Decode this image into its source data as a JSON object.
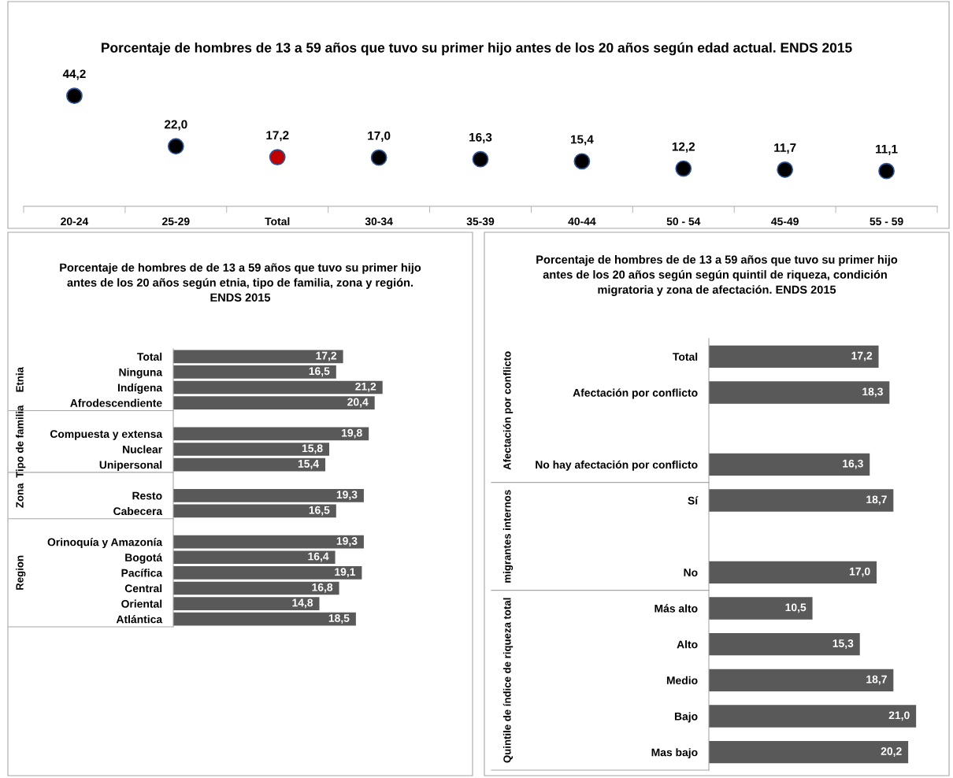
{
  "chart_data": [
    {
      "type": "scatter",
      "title": "Porcentaje de hombres de 13 a 59 años que tuvo su primer hijo antes de los 20 años según edad actual. ENDS 2015",
      "categories": [
        "20-24",
        "25-29",
        "Total",
        "30-34",
        "35-39",
        "40-44",
        "50 - 54",
        "45-49",
        "55 - 59"
      ],
      "values": [
        44.2,
        22.0,
        17.2,
        17.0,
        16.3,
        15.4,
        12.2,
        11.7,
        11.1
      ],
      "value_labels": [
        "44,2",
        "22,0",
        "17,2",
        "17,0",
        "16,3",
        "15,4",
        "12,2",
        "11,7",
        "11,1"
      ],
      "colors": [
        "#000000",
        "#000000",
        "#c00000",
        "#000000",
        "#000000",
        "#000000",
        "#000000",
        "#000000",
        "#000000"
      ],
      "marker": "circle",
      "grid": false,
      "legend": false,
      "tick_labels": "x"
    },
    {
      "type": "bar",
      "orientation": "horizontal",
      "title": "Porcentaje de hombres de de 13 a 59 años que tuvo su primer hijo antes de los 20 años según etnia, tipo de familia, zona y región. ENDS 2015",
      "categories": [
        "Total",
        "Ninguna",
        "Indígena",
        "Afrodescendiente",
        null,
        "Compuesta y extensa",
        "Nuclear",
        "Unipersonal",
        null,
        "Resto",
        "Cabecera",
        null,
        "Orinoquía y Amazonía",
        "Bogotá",
        "Pacífica",
        "Central",
        "Oriental",
        "Atlántica"
      ],
      "values": [
        17.2,
        16.5,
        21.2,
        20.4,
        null,
        19.8,
        15.8,
        15.4,
        null,
        19.3,
        16.5,
        null,
        19.3,
        16.4,
        19.1,
        16.8,
        14.8,
        18.5
      ],
      "value_labels": [
        "17,2",
        "16,5",
        "21,2",
        "20,4",
        null,
        "19,8",
        "15,8",
        "15,4",
        null,
        "19,3",
        "16,5",
        null,
        "19,3",
        "16,4",
        "19,1",
        "16,8",
        "14,8",
        "18,5"
      ],
      "color": "#595959",
      "grid": false,
      "legend": false,
      "tick_labels": "y",
      "annotations": [
        "Etnia",
        "Tipo de familia",
        "Zona",
        "Region"
      ]
    },
    {
      "type": "bar",
      "orientation": "horizontal",
      "title": "Porcentaje de hombres de de 13 a 59 años que tuvo su primer hijo antes de los 20 años según según quintil de riqueza, condición  migratoria y zona de afectación. ENDS 2015",
      "categories": [
        "Total",
        "Afectación por conflicto",
        null,
        "No hay afectación por conflicto",
        "Sí",
        null,
        "No",
        "Más alto",
        "Alto",
        "Medio",
        "Bajo",
        "Mas bajo"
      ],
      "values": [
        17.2,
        18.3,
        null,
        16.3,
        18.7,
        null,
        17.0,
        10.5,
        15.3,
        18.7,
        21.0,
        20.2
      ],
      "value_labels": [
        "17,2",
        "18,3",
        null,
        "16,3",
        "18,7",
        null,
        "17,0",
        "10,5",
        "15,3",
        "18,7",
        "21,0",
        "20,2"
      ],
      "color": "#595959",
      "grid": false,
      "legend": false,
      "tick_labels": "y",
      "annotations": [
        "Afectación por conflicto",
        "migrantes internos",
        "Quintile de índice de riqueza total"
      ]
    }
  ]
}
